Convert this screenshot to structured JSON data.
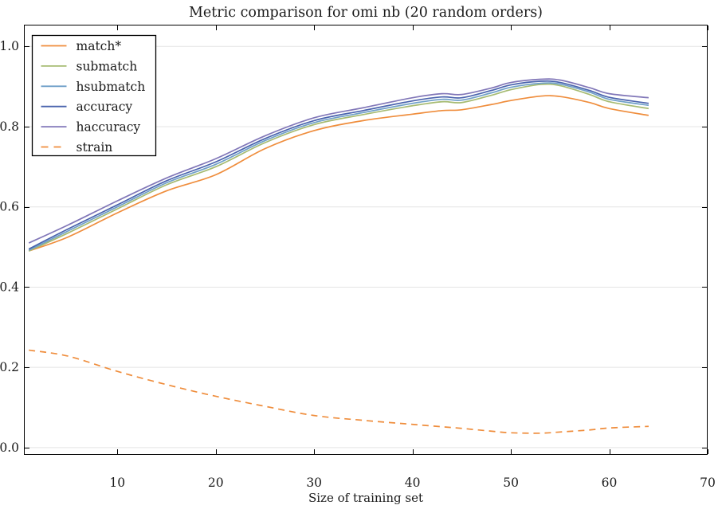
{
  "figure": {
    "background": "#ffffff",
    "text_color": "#1a1a1a",
    "grid_color": "#e4e4e4",
    "spine_color": "#000000",
    "legend_border_color": "#000000",
    "legend_background": "#ffffff"
  },
  "chart_data": {
    "type": "line",
    "title": "Metric comparison for omi nb (20 random orders)",
    "xlabel": "Size of training set",
    "ylabel": "",
    "xlim": [
      0.5,
      70
    ],
    "ylim": [
      -0.018,
      1.054
    ],
    "xticks": [
      10,
      20,
      30,
      40,
      50,
      60,
      70
    ],
    "yticks": [
      "0.0",
      "0.2",
      "0.4",
      "0.6",
      "0.8",
      "1.0"
    ],
    "grid": "horizontal",
    "legend_position": "upper-left",
    "x": [
      1,
      5,
      10,
      15,
      20,
      25,
      30,
      35,
      40,
      43,
      45,
      48,
      50,
      53,
      55,
      58,
      60,
      64
    ],
    "series": [
      {
        "name": "match*",
        "color": "#ef8d3c",
        "style": "solid",
        "values": [
          0.49,
          0.525,
          0.585,
          0.64,
          0.68,
          0.745,
          0.79,
          0.815,
          0.831,
          0.84,
          0.842,
          0.855,
          0.865,
          0.876,
          0.875,
          0.86,
          0.845,
          0.828
        ]
      },
      {
        "name": "submatch",
        "color": "#a6bb72",
        "style": "solid",
        "values": [
          0.49,
          0.535,
          0.595,
          0.655,
          0.7,
          0.76,
          0.805,
          0.83,
          0.852,
          0.862,
          0.86,
          0.878,
          0.892,
          0.905,
          0.902,
          0.88,
          0.862,
          0.845
        ]
      },
      {
        "name": "hsubmatch",
        "color": "#6f9fc8",
        "style": "solid",
        "values": [
          0.492,
          0.54,
          0.6,
          0.66,
          0.706,
          0.765,
          0.81,
          0.835,
          0.858,
          0.868,
          0.866,
          0.884,
          0.898,
          0.908,
          0.906,
          0.886,
          0.868,
          0.853
        ]
      },
      {
        "name": "accuracy",
        "color": "#4a63ad",
        "style": "solid",
        "values": [
          0.495,
          0.545,
          0.605,
          0.665,
          0.712,
          0.77,
          0.815,
          0.84,
          0.864,
          0.874,
          0.872,
          0.89,
          0.904,
          0.913,
          0.91,
          0.89,
          0.873,
          0.858
        ]
      },
      {
        "name": "haccuracy",
        "color": "#8177b8",
        "style": "solid",
        "values": [
          0.51,
          0.555,
          0.615,
          0.672,
          0.72,
          0.777,
          0.822,
          0.847,
          0.872,
          0.882,
          0.88,
          0.896,
          0.91,
          0.918,
          0.916,
          0.897,
          0.882,
          0.872
        ]
      },
      {
        "name": "strain",
        "color": "#ef8d3c",
        "style": "dashed",
        "values": [
          0.243,
          0.228,
          0.19,
          0.157,
          0.128,
          0.103,
          0.08,
          0.068,
          0.058,
          0.052,
          0.048,
          0.041,
          0.037,
          0.036,
          0.039,
          0.044,
          0.049,
          0.053
        ]
      }
    ]
  }
}
